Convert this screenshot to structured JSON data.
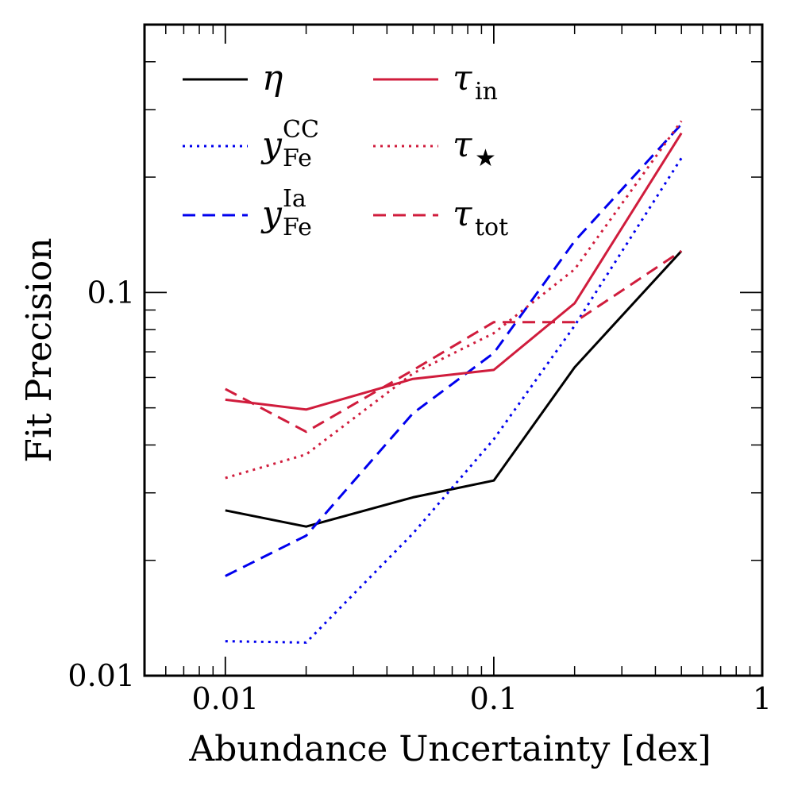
{
  "chart_data": {
    "type": "line",
    "xlabel": "Abundance Uncertainty [dex]",
    "ylabel": "Fit Precision",
    "xscale": "log",
    "yscale": "log",
    "xlim": [
      0.005,
      1
    ],
    "ylim": [
      0.01,
      0.5
    ],
    "x_ticks": [
      {
        "value": 0.01,
        "label": "0.01"
      },
      {
        "value": 0.1,
        "label": "0.1"
      },
      {
        "value": 1,
        "label": "1"
      }
    ],
    "y_ticks": [
      {
        "value": 0.01,
        "label": "0.01"
      },
      {
        "value": 0.1,
        "label": "0.1"
      }
    ],
    "grid": false,
    "legend": "top-left",
    "x": [
      0.01,
      0.02,
      0.05,
      0.1,
      0.2,
      0.5
    ],
    "series": [
      {
        "name": "η",
        "sym": "η",
        "sub": "",
        "sup": "",
        "color": "#000000",
        "dash": "solid",
        "values": [
          0.027,
          0.0245,
          0.0292,
          0.0323,
          0.0638,
          0.1283
        ]
      },
      {
        "name": "y_Fe^CC",
        "sym": "y",
        "sub": "Fe",
        "sup": "CC",
        "color": "#0000ee",
        "dash": "dotted",
        "values": [
          0.0123,
          0.0122,
          0.0235,
          0.0414,
          0.0819,
          0.2242
        ]
      },
      {
        "name": "y_Fe^Ia",
        "sym": "y",
        "sub": "Fe",
        "sup": "Ia",
        "color": "#0000ee",
        "dash": "dashed",
        "values": [
          0.0182,
          0.0232,
          0.0484,
          0.0695,
          0.1361,
          0.2749
        ]
      },
      {
        "name": "τ_in",
        "sym": "τ",
        "sub": "in",
        "sup": "",
        "color": "#d01c3c",
        "dash": "solid",
        "values": [
          0.0525,
          0.0495,
          0.0595,
          0.0628,
          0.0937,
          0.2605
        ]
      },
      {
        "name": "τ_★",
        "sym": "τ",
        "sub": "★",
        "sup": "",
        "color": "#d01c3c",
        "dash": "dotted",
        "values": [
          0.0328,
          0.0378,
          0.0615,
          0.0783,
          0.1149,
          0.2802
        ]
      },
      {
        "name": "τ_tot",
        "sym": "τ",
        "sub": "tot",
        "sup": "",
        "color": "#d01c3c",
        "dash": "dashed",
        "values": [
          0.056,
          0.0433,
          0.0627,
          0.0837,
          0.0837,
          0.1283
        ]
      }
    ]
  }
}
